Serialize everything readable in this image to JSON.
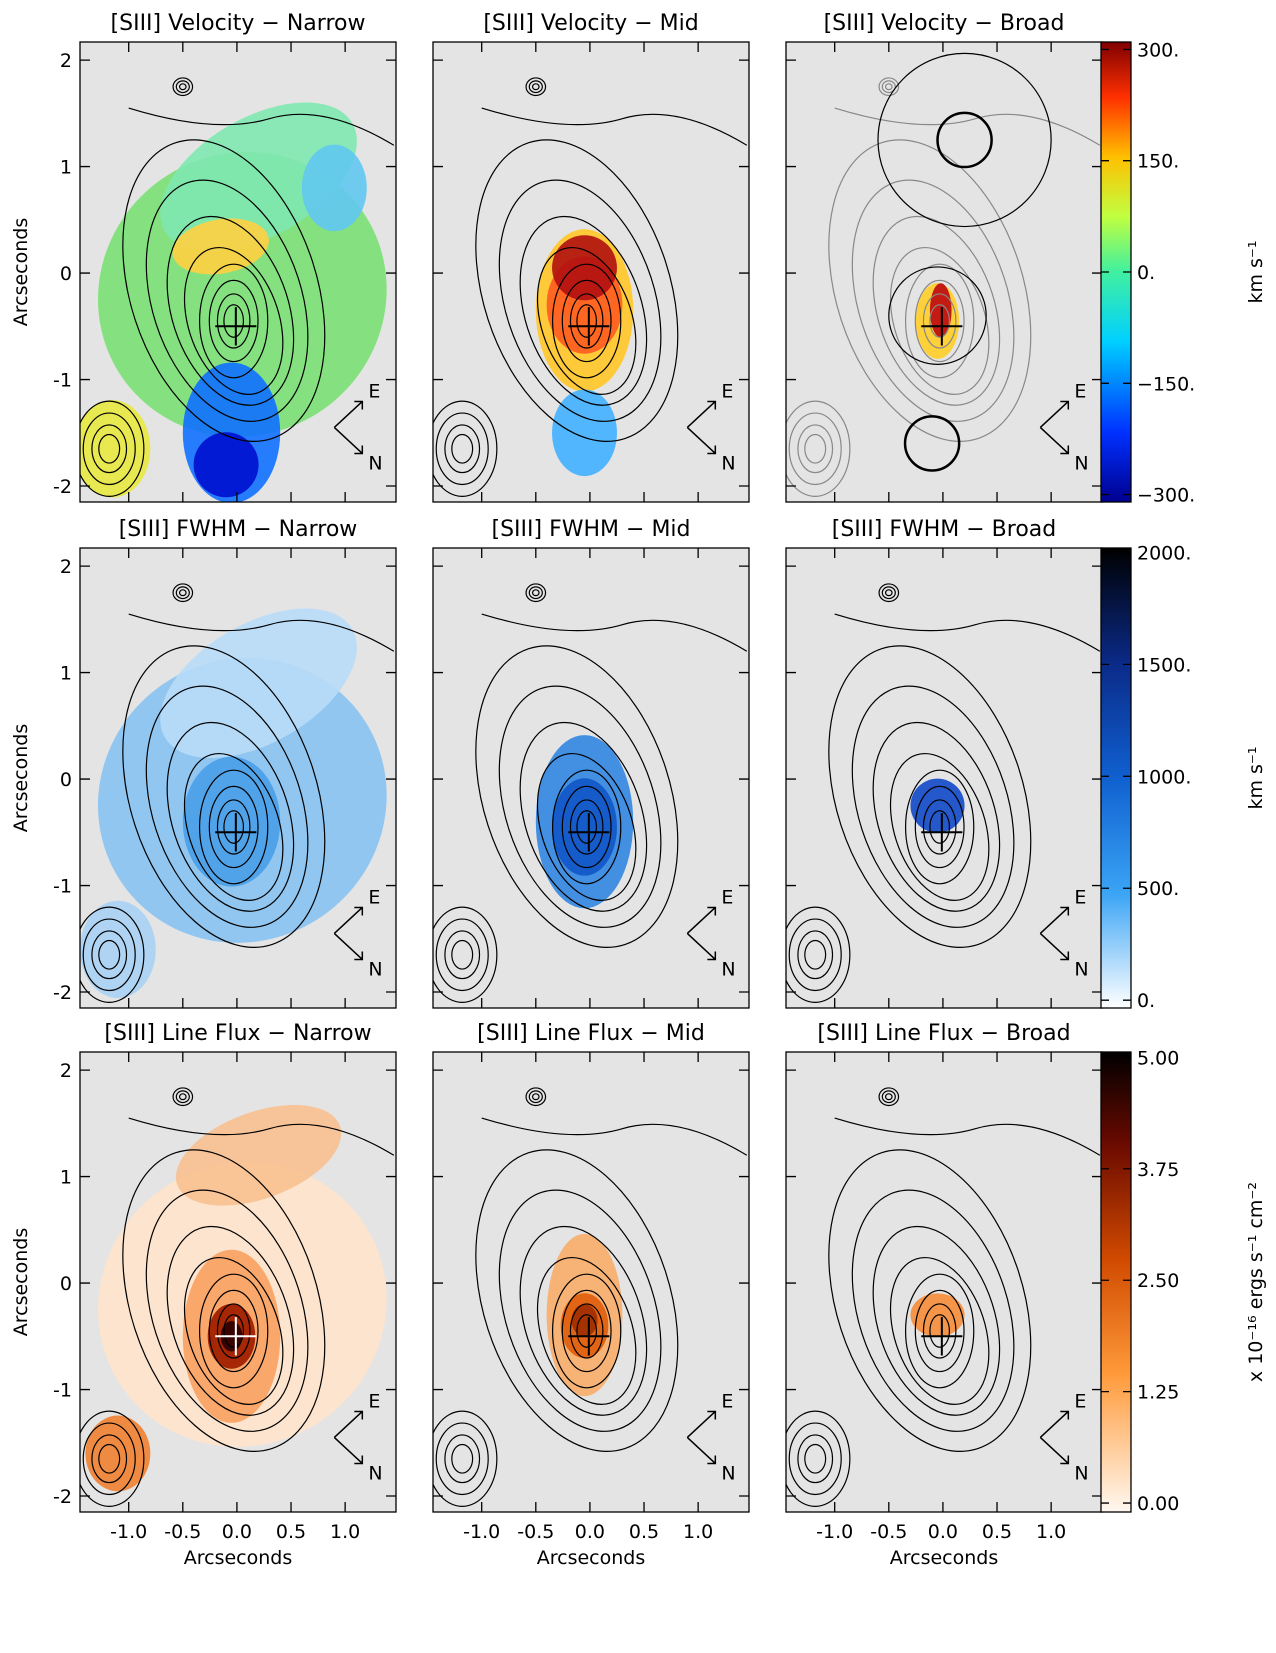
{
  "figure": {
    "xlabel": "Arcseconds",
    "ylabel": "Arcseconds",
    "xlim": [
      -1.45,
      1.47
    ],
    "ylim": [
      -2.15,
      2.17
    ],
    "xticks": [
      {
        "value": -1.0,
        "label": "-1.0"
      },
      {
        "value": -0.5,
        "label": "-0.5"
      },
      {
        "value": 0,
        "label": "0.0"
      },
      {
        "value": 0.5,
        "label": "0.5"
      },
      {
        "value": 1.0,
        "label": "1.0"
      }
    ],
    "yticks": [
      -2,
      -1,
      0,
      1,
      2
    ],
    "compass": {
      "east": "E",
      "north": "N"
    },
    "rows": [
      {
        "panels": [
          {
            "title": "[SIII] Velocity − Narrow"
          },
          {
            "title": "[SIII] Velocity − Mid"
          },
          {
            "title": "[SIII] Velocity − Broad"
          }
        ],
        "colorbar": {
          "label": "km s⁻¹",
          "lim": [
            -310,
            310
          ],
          "ticks": [
            {
              "value": 300,
              "label": "300."
            },
            {
              "value": 150,
              "label": "150."
            },
            {
              "value": 0,
              "label": "0."
            },
            {
              "value": -150,
              "label": "−150."
            },
            {
              "value": -300,
              "label": "−300."
            }
          ]
        }
      },
      {
        "panels": [
          {
            "title": "[SIII] FWHM − Narrow"
          },
          {
            "title": "[SIII] FWHM − Mid"
          },
          {
            "title": "[SIII] FWHM − Broad"
          }
        ],
        "colorbar": {
          "label": "km s⁻¹",
          "lim": [
            -35,
            2020
          ],
          "ticks": [
            {
              "value": 2000,
              "label": "2000."
            },
            {
              "value": 1500,
              "label": "1500."
            },
            {
              "value": 1000,
              "label": "1000."
            },
            {
              "value": 500,
              "label": "500."
            },
            {
              "value": 0,
              "label": "0."
            }
          ]
        }
      },
      {
        "panels": [
          {
            "title": "[SIII] Line Flux − Narrow"
          },
          {
            "title": "[SIII] Line Flux − Mid"
          },
          {
            "title": "[SIII] Line Flux − Broad"
          }
        ],
        "colorbar": {
          "label": "x 10⁻¹⁶ ergs s⁻¹ cm⁻²",
          "lim": [
            -0.1,
            5.06
          ],
          "ticks": [
            {
              "value": 5,
              "label": "5.00"
            },
            {
              "value": 3.75,
              "label": "3.75"
            },
            {
              "value": 2.5,
              "label": "2.50"
            },
            {
              "value": 1.25,
              "label": "1.25"
            },
            {
              "value": 0,
              "label": "0.00"
            }
          ]
        }
      }
    ]
  }
}
